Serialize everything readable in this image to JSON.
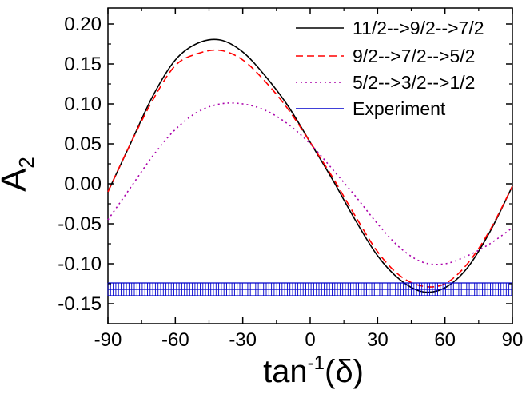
{
  "chart_data": {
    "type": "line",
    "xlabel": "tan",
    "xlabel_sup": "-1",
    "xlabel_suffix": "(δ)",
    "ylabel": "A",
    "ylabel_sub": "2",
    "xlim": [
      -90,
      90
    ],
    "ylim": [
      -0.175,
      0.22
    ],
    "xticks": [
      -90,
      -60,
      -30,
      0,
      30,
      60,
      90
    ],
    "xtick_labels": [
      "-90",
      "-60",
      "-30",
      "0",
      "30",
      "60",
      "90"
    ],
    "yticks": [
      -0.15,
      -0.1,
      -0.05,
      0.0,
      0.05,
      0.1,
      0.15,
      0.2
    ],
    "ytick_labels": [
      "-0.15",
      "-0.10",
      "-0.05",
      "0.00",
      "0.05",
      "0.10",
      "0.15",
      "0.20"
    ],
    "grid": false,
    "legend_position": "top-right",
    "x": [
      -90,
      -80,
      -70,
      -60,
      -50,
      -40,
      -30,
      -20,
      -10,
      0,
      10,
      20,
      30,
      40,
      50,
      60,
      70,
      80,
      90
    ],
    "series": [
      {
        "name": "11/2-->9/2-->7/2",
        "color": "#000000",
        "style": "solid",
        "values": [
          -0.01,
          0.05,
          0.11,
          0.155,
          0.176,
          0.18,
          0.165,
          0.135,
          0.098,
          0.052,
          0.005,
          -0.045,
          -0.09,
          -0.12,
          -0.135,
          -0.13,
          -0.105,
          -0.06,
          -0.003
        ]
      },
      {
        "name": "9/2-->7/2-->5/2",
        "color": "#ff0000",
        "style": "dashed",
        "values": [
          -0.01,
          0.05,
          0.105,
          0.148,
          0.163,
          0.167,
          0.155,
          0.128,
          0.094,
          0.052,
          0.008,
          -0.04,
          -0.085,
          -0.115,
          -0.128,
          -0.125,
          -0.1,
          -0.058,
          -0.003
        ]
      },
      {
        "name": "5/2-->3/2-->1/2",
        "color": "#aa00aa",
        "style": "dotted",
        "values": [
          -0.045,
          -0.005,
          0.035,
          0.068,
          0.09,
          0.1,
          0.1,
          0.092,
          0.075,
          0.05,
          0.018,
          -0.015,
          -0.05,
          -0.08,
          -0.098,
          -0.1,
          -0.09,
          -0.075,
          -0.055
        ]
      }
    ],
    "experiment": {
      "name": "Experiment",
      "color": "#0000cc",
      "value": -0.132,
      "error": 0.008
    }
  }
}
